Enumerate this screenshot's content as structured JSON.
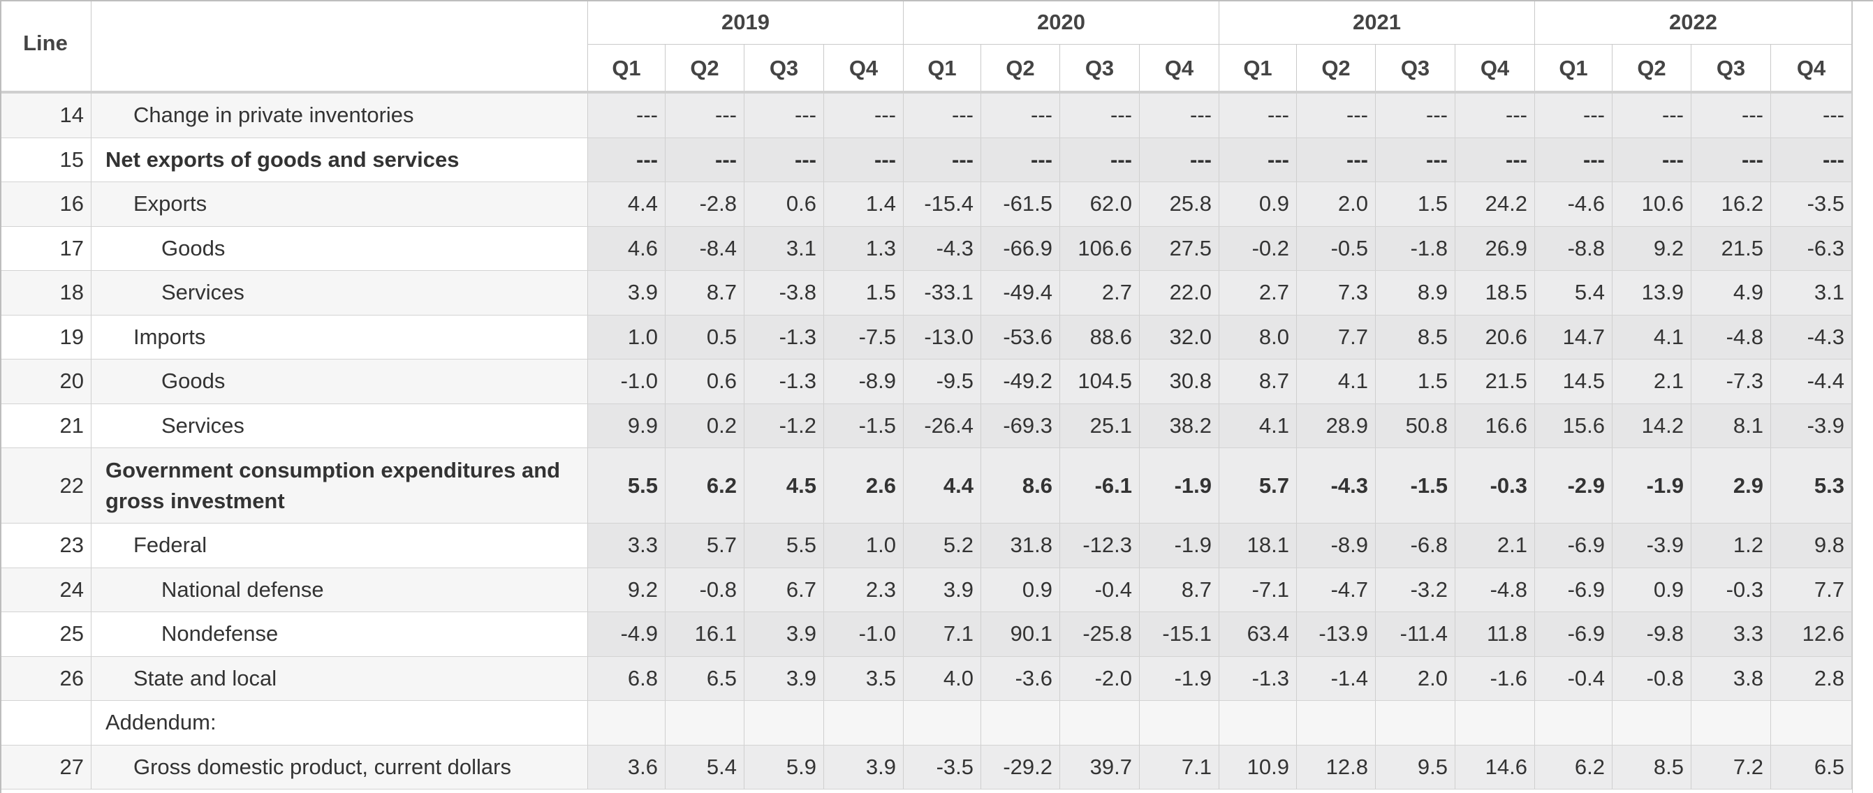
{
  "header": {
    "line_label": "Line",
    "years": [
      "2019",
      "2020",
      "2021",
      "2022"
    ],
    "quarters": [
      "Q1",
      "Q2",
      "Q3",
      "Q4",
      "Q1",
      "Q2",
      "Q3",
      "Q4",
      "Q1",
      "Q2",
      "Q3",
      "Q4",
      "Q1",
      "Q2",
      "Q3",
      "Q4"
    ]
  },
  "rows": [
    {
      "line": "14",
      "label": "Change in private inventories",
      "indent": 1,
      "bold": false,
      "values": [
        "---",
        "---",
        "---",
        "---",
        "---",
        "---",
        "---",
        "---",
        "---",
        "---",
        "---",
        "---",
        "---",
        "---",
        "---",
        "---"
      ]
    },
    {
      "line": "15",
      "label": "Net exports of goods and services",
      "indent": 0,
      "bold": true,
      "values": [
        "---",
        "---",
        "---",
        "---",
        "---",
        "---",
        "---",
        "---",
        "---",
        "---",
        "---",
        "---",
        "---",
        "---",
        "---",
        "---"
      ]
    },
    {
      "line": "16",
      "label": "Exports",
      "indent": 1,
      "bold": false,
      "values": [
        "4.4",
        "-2.8",
        "0.6",
        "1.4",
        "-15.4",
        "-61.5",
        "62.0",
        "25.8",
        "0.9",
        "2.0",
        "1.5",
        "24.2",
        "-4.6",
        "10.6",
        "16.2",
        "-3.5"
      ]
    },
    {
      "line": "17",
      "label": "Goods",
      "indent": 2,
      "bold": false,
      "values": [
        "4.6",
        "-8.4",
        "3.1",
        "1.3",
        "-4.3",
        "-66.9",
        "106.6",
        "27.5",
        "-0.2",
        "-0.5",
        "-1.8",
        "26.9",
        "-8.8",
        "9.2",
        "21.5",
        "-6.3"
      ]
    },
    {
      "line": "18",
      "label": "Services",
      "indent": 2,
      "bold": false,
      "values": [
        "3.9",
        "8.7",
        "-3.8",
        "1.5",
        "-33.1",
        "-49.4",
        "2.7",
        "22.0",
        "2.7",
        "7.3",
        "8.9",
        "18.5",
        "5.4",
        "13.9",
        "4.9",
        "3.1"
      ]
    },
    {
      "line": "19",
      "label": "Imports",
      "indent": 1,
      "bold": false,
      "values": [
        "1.0",
        "0.5",
        "-1.3",
        "-7.5",
        "-13.0",
        "-53.6",
        "88.6",
        "32.0",
        "8.0",
        "7.7",
        "8.5",
        "20.6",
        "14.7",
        "4.1",
        "-4.8",
        "-4.3"
      ]
    },
    {
      "line": "20",
      "label": "Goods",
      "indent": 2,
      "bold": false,
      "values": [
        "-1.0",
        "0.6",
        "-1.3",
        "-8.9",
        "-9.5",
        "-49.2",
        "104.5",
        "30.8",
        "8.7",
        "4.1",
        "1.5",
        "21.5",
        "14.5",
        "2.1",
        "-7.3",
        "-4.4"
      ]
    },
    {
      "line": "21",
      "label": "Services",
      "indent": 2,
      "bold": false,
      "values": [
        "9.9",
        "0.2",
        "-1.2",
        "-1.5",
        "-26.4",
        "-69.3",
        "25.1",
        "38.2",
        "4.1",
        "28.9",
        "50.8",
        "16.6",
        "15.6",
        "14.2",
        "8.1",
        "-3.9"
      ]
    },
    {
      "line": "22",
      "label": "Government consumption expenditures and gross investment",
      "indent": 0,
      "bold": true,
      "tall": true,
      "values": [
        "5.5",
        "6.2",
        "4.5",
        "2.6",
        "4.4",
        "8.6",
        "-6.1",
        "-1.9",
        "5.7",
        "-4.3",
        "-1.5",
        "-0.3",
        "-2.9",
        "-1.9",
        "2.9",
        "5.3"
      ]
    },
    {
      "line": "23",
      "label": "Federal",
      "indent": 1,
      "bold": false,
      "values": [
        "3.3",
        "5.7",
        "5.5",
        "1.0",
        "5.2",
        "31.8",
        "-12.3",
        "-1.9",
        "18.1",
        "-8.9",
        "-6.8",
        "2.1",
        "-6.9",
        "-3.9",
        "1.2",
        "9.8"
      ]
    },
    {
      "line": "24",
      "label": "National defense",
      "indent": 2,
      "bold": false,
      "values": [
        "9.2",
        "-0.8",
        "6.7",
        "2.3",
        "3.9",
        "0.9",
        "-0.4",
        "8.7",
        "-7.1",
        "-4.7",
        "-3.2",
        "-4.8",
        "-6.9",
        "0.9",
        "-0.3",
        "7.7"
      ]
    },
    {
      "line": "25",
      "label": "Nondefense",
      "indent": 2,
      "bold": false,
      "values": [
        "-4.9",
        "16.1",
        "3.9",
        "-1.0",
        "7.1",
        "90.1",
        "-25.8",
        "-15.1",
        "63.4",
        "-13.9",
        "-11.4",
        "11.8",
        "-6.9",
        "-9.8",
        "3.3",
        "12.6"
      ]
    },
    {
      "line": "26",
      "label": "State and local",
      "indent": 1,
      "bold": false,
      "values": [
        "6.8",
        "6.5",
        "3.9",
        "3.5",
        "4.0",
        "-3.6",
        "-2.0",
        "-1.9",
        "-1.3",
        "-1.4",
        "2.0",
        "-1.6",
        "-0.4",
        "-0.8",
        "3.8",
        "2.8"
      ]
    },
    {
      "line": "",
      "label": "Addendum:",
      "indent": 0,
      "bold": false,
      "addendum": true,
      "values": [
        "",
        "",
        "",
        "",
        "",
        "",
        "",
        "",
        "",
        "",
        "",
        "",
        "",
        "",
        "",
        ""
      ]
    },
    {
      "line": "27",
      "label": "Gross domestic product, current dollars",
      "indent": 1,
      "bold": false,
      "values": [
        "3.6",
        "5.4",
        "5.9",
        "3.9",
        "-3.5",
        "-29.2",
        "39.7",
        "7.1",
        "10.9",
        "12.8",
        "9.5",
        "14.6",
        "6.2",
        "8.5",
        "7.2",
        "6.5"
      ]
    }
  ]
}
